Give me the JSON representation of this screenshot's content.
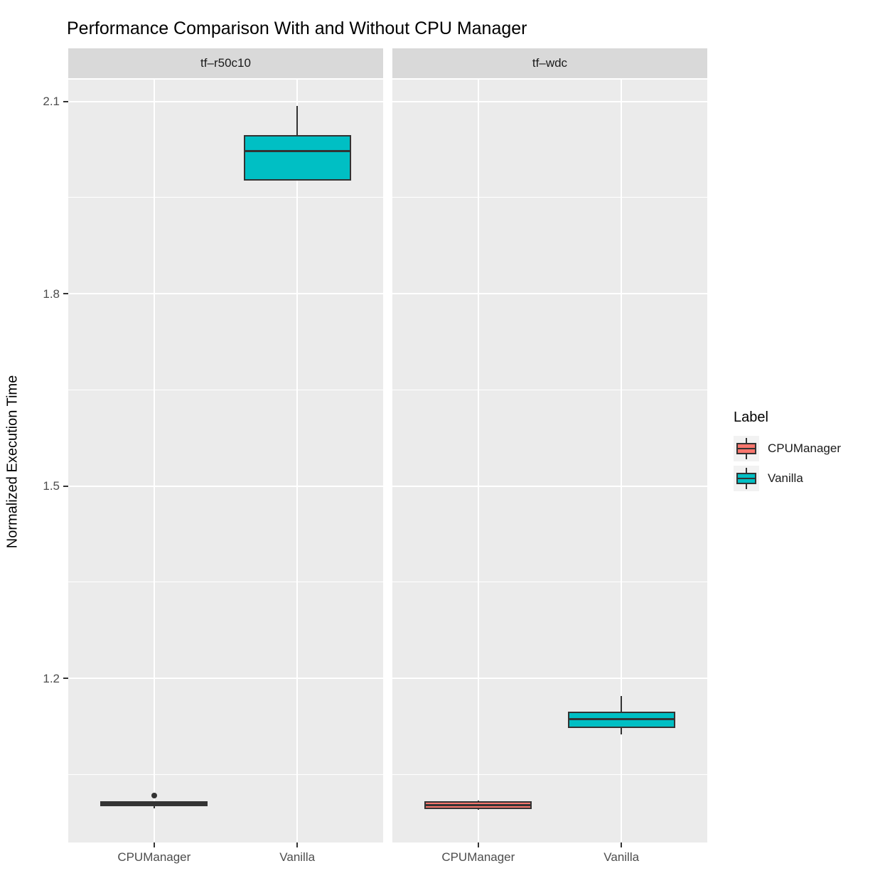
{
  "chart_data": {
    "type": "boxplot",
    "title": "Performance Comparison With and Without CPU Manager",
    "ylabel": "Normalized Execution Time",
    "xlabel": "",
    "ylim": [
      0.944,
      2.134
    ],
    "yticks": [
      1.2,
      1.5,
      1.8,
      2.1
    ],
    "ytick_labels": [
      "1.2",
      "1.5",
      "1.8",
      "2.1"
    ],
    "grid": {
      "major": true,
      "minor": true,
      "color": "#FFFFFF",
      "panel_bg": "#EBEBEB"
    },
    "legend": {
      "title": "Label",
      "position": "right",
      "entries": [
        {
          "label": "CPUManager",
          "fill": "#F8766D"
        },
        {
          "label": "Vanilla",
          "fill": "#00BFC4"
        }
      ]
    },
    "facets": [
      {
        "label": "tf–r50c10",
        "categories": [
          "CPUManager",
          "Vanilla"
        ],
        "boxes": [
          {
            "category": "CPUManager",
            "series": "CPUManager",
            "fill": "#F8766D",
            "whisker_low": 0.997,
            "q1": 1.0,
            "median": 1.004,
            "q3": 1.008,
            "whisker_high": 1.008,
            "outliers": [
              1.017
            ]
          },
          {
            "category": "Vanilla",
            "series": "Vanilla",
            "fill": "#00BFC4",
            "whisker_low": 1.977,
            "q1": 1.977,
            "median": 2.022,
            "q3": 2.048,
            "whisker_high": 2.093,
            "outliers": []
          }
        ]
      },
      {
        "label": "tf–wdc",
        "categories": [
          "CPUManager",
          "Vanilla"
        ],
        "boxes": [
          {
            "category": "CPUManager",
            "series": "CPUManager",
            "fill": "#F8766D",
            "whisker_low": 0.995,
            "q1": 0.996,
            "median": 1.002,
            "q3": 1.008,
            "whisker_high": 1.009,
            "outliers": []
          },
          {
            "category": "Vanilla",
            "series": "Vanilla",
            "fill": "#00BFC4",
            "whisker_low": 1.113,
            "q1": 1.123,
            "median": 1.136,
            "q3": 1.148,
            "whisker_high": 1.172,
            "outliers": []
          }
        ]
      }
    ],
    "colors": {
      "panel_bg": "#EBEBEB",
      "strip_bg": "#D9D9D9",
      "grid": "#FFFFFF",
      "box_stroke": "#333333",
      "tick": "#333333",
      "tick_label": "#4D4D4D",
      "title": "#000000",
      "legend_key_bg": "#F2F2F2"
    }
  }
}
